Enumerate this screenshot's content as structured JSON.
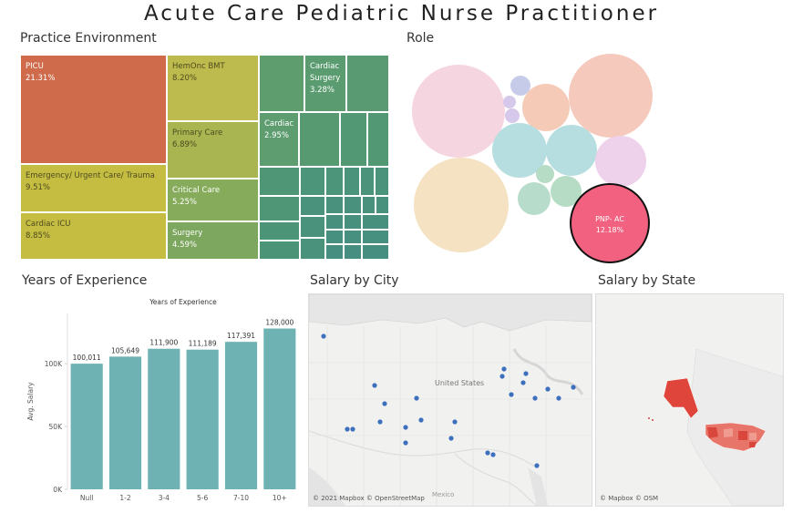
{
  "title": "Acute Care Pediatric Nurse Practitioner",
  "practice": {
    "heading": "Practice Environment",
    "cells": [
      {
        "name": "PICU",
        "pct": "21.31%"
      },
      {
        "name": "Emergency/ Urgent Care/ Trauma",
        "pct": "9.51%"
      },
      {
        "name": "Cardiac ICU",
        "pct": "8.85%"
      },
      {
        "name": "HemOnc BMT",
        "pct": "8.20%"
      },
      {
        "name": "Primary Care",
        "pct": "6.89%"
      },
      {
        "name": "Critical Care",
        "pct": "5.25%"
      },
      {
        "name": "Surgery",
        "pct": "4.59%"
      },
      {
        "name": "Cardiac Surgery",
        "pct": "3.28%"
      },
      {
        "name": "Cardiac",
        "pct": "2.95%"
      }
    ]
  },
  "role": {
    "heading": "Role",
    "highlight_label": "PNP- AC",
    "highlight_pct": "12.18%",
    "colors": {
      "highlight": "#f2617f"
    }
  },
  "experience": {
    "heading": "Years of Experience",
    "chart_data": {
      "type": "bar",
      "title": "Years of Experience",
      "ylabel": "Avg. Salary",
      "categories": [
        "Null",
        "1-2",
        "3-4",
        "5-6",
        "7-10",
        "10+"
      ],
      "values": [
        100011,
        105649,
        111900,
        111189,
        117391,
        128000
      ],
      "value_labels": [
        "100,011",
        "105,649",
        "111,900",
        "111,189",
        "117,391",
        "128,000"
      ],
      "yticks": [
        "0K",
        "50K",
        "100K"
      ],
      "ylim": [
        0,
        140000
      ],
      "bar_color": "#6fb2b3"
    }
  },
  "city": {
    "heading": "Salary by City",
    "label": "United States",
    "label2": "Mexico",
    "attribution": "© 2021 Mapbox © OpenStreetMap"
  },
  "state": {
    "heading": "Salary by State",
    "attribution": "© Mapbox © OSM"
  }
}
